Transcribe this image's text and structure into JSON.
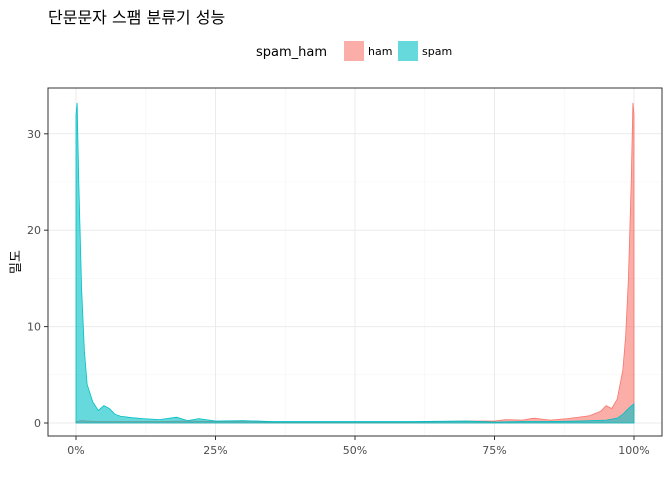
{
  "chart_data": {
    "type": "area",
    "title": "단문문자 스팸 분류기 성능",
    "xlabel": "",
    "ylabel": "밀도",
    "xlim": [
      0,
      1
    ],
    "ylim": [
      0,
      34
    ],
    "x_ticks": [
      0,
      0.25,
      0.5,
      0.75,
      1
    ],
    "x_tick_labels": [
      "0%",
      "25%",
      "50%",
      "75%",
      "100%"
    ],
    "y_ticks": [
      0,
      10,
      20,
      30
    ],
    "y_tick_labels": [
      "0",
      "10",
      "20",
      "30"
    ],
    "grid": true,
    "legend": {
      "title": "spam_ham",
      "position": "top"
    },
    "series": [
      {
        "name": "ham",
        "color": "#F8766D",
        "x": [
          0,
          0.005,
          0.01,
          0.02,
          0.04,
          0.06,
          0.1,
          0.15,
          0.2,
          0.25,
          0.3,
          0.35,
          0.4,
          0.45,
          0.5,
          0.55,
          0.6,
          0.65,
          0.7,
          0.75,
          0.77,
          0.8,
          0.82,
          0.85,
          0.88,
          0.9,
          0.92,
          0.94,
          0.95,
          0.96,
          0.97,
          0.98,
          0.985,
          0.99,
          0.995,
          0.998,
          1
        ],
        "values": [
          0.15,
          0.2,
          0.25,
          0.2,
          0.15,
          0.15,
          0.15,
          0.15,
          0.2,
          0.15,
          0.15,
          0.1,
          0.1,
          0.1,
          0.1,
          0.1,
          0.1,
          0.15,
          0.2,
          0.2,
          0.35,
          0.3,
          0.5,
          0.3,
          0.45,
          0.6,
          0.75,
          1.2,
          1.8,
          1.5,
          2.5,
          5.5,
          9.0,
          15.0,
          25.0,
          33.2,
          32.0
        ]
      },
      {
        "name": "spam",
        "color": "#00BFC4",
        "x": [
          0,
          0.002,
          0.005,
          0.01,
          0.015,
          0.02,
          0.03,
          0.04,
          0.05,
          0.06,
          0.07,
          0.08,
          0.1,
          0.12,
          0.15,
          0.18,
          0.2,
          0.22,
          0.25,
          0.3,
          0.35,
          0.4,
          0.45,
          0.5,
          0.6,
          0.7,
          0.75,
          0.8,
          0.85,
          0.9,
          0.95,
          0.97,
          0.98,
          0.99,
          1
        ],
        "values": [
          32.0,
          33.2,
          25.0,
          14.0,
          7.5,
          4.0,
          2.2,
          1.3,
          1.8,
          1.5,
          0.9,
          0.7,
          0.55,
          0.45,
          0.35,
          0.6,
          0.25,
          0.45,
          0.2,
          0.25,
          0.15,
          0.15,
          0.15,
          0.15,
          0.15,
          0.2,
          0.1,
          0.15,
          0.15,
          0.2,
          0.3,
          0.5,
          0.9,
          1.5,
          2.0
        ]
      }
    ]
  }
}
